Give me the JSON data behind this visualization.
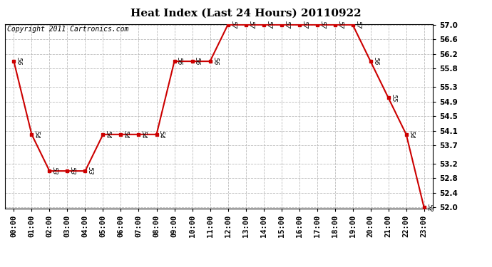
{
  "title": "Heat Index (Last 24 Hours) 20110922",
  "copyright": "Copyright 2011 Cartronics.com",
  "x_labels": [
    "00:00",
    "01:00",
    "02:00",
    "03:00",
    "04:00",
    "05:00",
    "06:00",
    "07:00",
    "08:00",
    "09:00",
    "10:00",
    "11:00",
    "12:00",
    "13:00",
    "14:00",
    "15:00",
    "16:00",
    "17:00",
    "18:00",
    "19:00",
    "20:00",
    "21:00",
    "22:00",
    "23:00"
  ],
  "y_values": [
    56,
    54,
    53,
    53,
    53,
    54,
    54,
    54,
    54,
    56,
    56,
    56,
    57,
    57,
    57,
    57,
    57,
    57,
    57,
    57,
    56,
    55,
    54,
    52
  ],
  "point_labels": [
    "56",
    "54",
    "53",
    "53",
    "53",
    "54",
    "54",
    "54",
    "54",
    "56",
    "56",
    "56",
    "57",
    "57",
    "57",
    "57",
    "57",
    "57",
    "57",
    "57",
    "56",
    "55",
    "54",
    "52"
  ],
  "y_min": 52.0,
  "y_max": 57.0,
  "y_ticks": [
    52.0,
    52.4,
    52.8,
    53.2,
    53.7,
    54.1,
    54.5,
    54.9,
    55.3,
    55.8,
    56.2,
    56.6,
    57.0
  ],
  "line_color": "#cc0000",
  "marker_color": "#cc0000",
  "bg_color": "#ffffff",
  "plot_bg_color": "#ffffff",
  "grid_color": "#bbbbbb",
  "title_fontsize": 11,
  "label_fontsize": 7.5,
  "copyright_fontsize": 7
}
